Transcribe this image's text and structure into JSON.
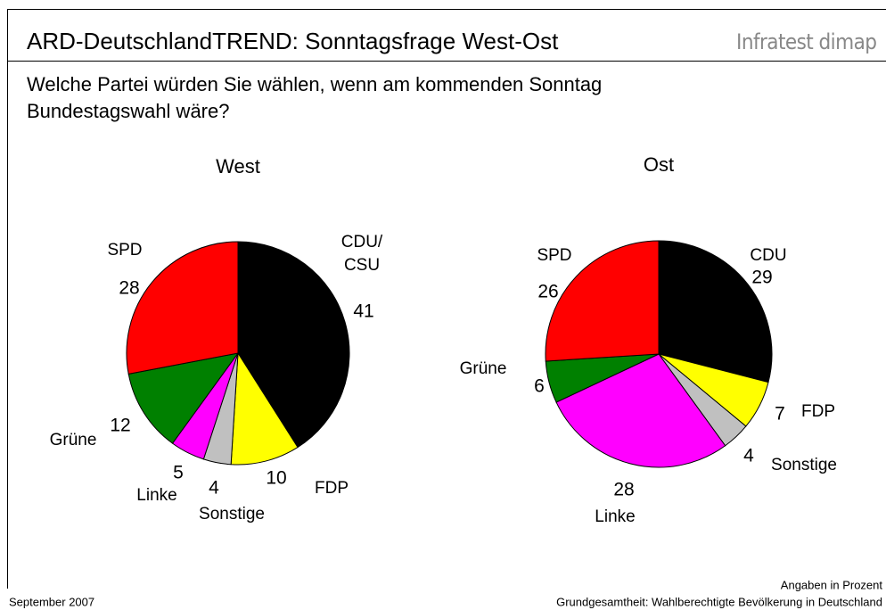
{
  "title": "ARD-DeutschlandTREND: Sonntagsfrage West-Ost",
  "brand": "Infratest dimap",
  "subtitle": [
    "Welche Partei würden Sie wählen, wenn am kommenden Sonntag",
    "Bundestagswahl wäre?"
  ],
  "footer": {
    "date": "September 2007",
    "unit": "Angaben in Prozent",
    "base": "Grundgesamtheit: Wahlberechtigte Bevölkerung in Deutschland"
  },
  "chart_data": [
    {
      "type": "pie",
      "title": "West",
      "categories": [
        "CDU/\nCSU",
        "FDP",
        "Sonstige",
        "Linke",
        "Grüne",
        "SPD"
      ],
      "values": [
        41,
        10,
        4,
        5,
        12,
        28
      ],
      "colors": [
        "#000000",
        "#ffff00",
        "#c0c0c0",
        "#ff00ff",
        "#008000",
        "#ff0000"
      ]
    },
    {
      "type": "pie",
      "title": "Ost",
      "categories": [
        "CDU",
        "FDP",
        "Sonstige",
        "Linke",
        "Grüne",
        "SPD"
      ],
      "values": [
        29,
        7,
        4,
        28,
        6,
        26
      ],
      "colors": [
        "#000000",
        "#ffff00",
        "#c0c0c0",
        "#ff00ff",
        "#008000",
        "#ff0000"
      ]
    }
  ]
}
